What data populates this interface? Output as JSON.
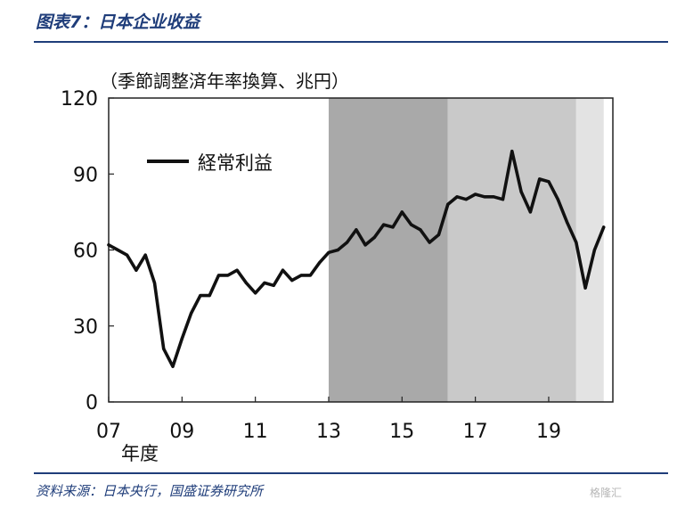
{
  "figure_title": "图表7：日本企业收益",
  "source": "资料来源：日本央行，国盛证券研究所",
  "watermark": "格隆汇",
  "colors": {
    "title": "#1f3d7a",
    "line": "#111111",
    "band_dark": "#a9a9a9",
    "band_mid": "#c9c9c9",
    "band_light": "#e3e3e3"
  },
  "chart_data": {
    "type": "line",
    "unit_note": "（季節調整済年率換算、兆円）",
    "xlabel": "年度",
    "ylim": [
      0,
      120
    ],
    "yticks": [
      0,
      30,
      60,
      90,
      120
    ],
    "xlim": [
      2007,
      2020.75
    ],
    "xticks": [
      {
        "value": 2007,
        "label": "07"
      },
      {
        "value": 2009,
        "label": "09"
      },
      {
        "value": 2011,
        "label": "11"
      },
      {
        "value": 2013,
        "label": "13"
      },
      {
        "value": 2015,
        "label": "15"
      },
      {
        "value": 2017,
        "label": "17"
      },
      {
        "value": 2019,
        "label": "19"
      }
    ],
    "grid": false,
    "legend_position": "top-left",
    "shaded_periods": [
      {
        "from": 2013.0,
        "to": 2016.25,
        "shade": "dark"
      },
      {
        "from": 2016.25,
        "to": 2019.75,
        "shade": "mid"
      },
      {
        "from": 2019.75,
        "to": 2020.5,
        "shade": "light"
      }
    ],
    "series": [
      {
        "name": "経常利益",
        "x": [
          2007.0,
          2007.25,
          2007.5,
          2007.75,
          2008.0,
          2008.25,
          2008.5,
          2008.75,
          2009.0,
          2009.25,
          2009.5,
          2009.75,
          2010.0,
          2010.25,
          2010.5,
          2010.75,
          2011.0,
          2011.25,
          2011.5,
          2011.75,
          2012.0,
          2012.25,
          2012.5,
          2012.75,
          2013.0,
          2013.25,
          2013.5,
          2013.75,
          2014.0,
          2014.25,
          2014.5,
          2014.75,
          2015.0,
          2015.25,
          2015.5,
          2015.75,
          2016.0,
          2016.25,
          2016.5,
          2016.75,
          2017.0,
          2017.25,
          2017.5,
          2017.75,
          2018.0,
          2018.25,
          2018.5,
          2018.75,
          2019.0,
          2019.25,
          2019.5,
          2019.75,
          2020.0,
          2020.25,
          2020.5
        ],
        "values": [
          62,
          60,
          58,
          52,
          58,
          47,
          21,
          14,
          25,
          35,
          42,
          42,
          50,
          50,
          52,
          47,
          43,
          47,
          46,
          52,
          48,
          50,
          50,
          55,
          59,
          60,
          63,
          68,
          62,
          65,
          70,
          69,
          75,
          70,
          68,
          63,
          66,
          78,
          81,
          80,
          82,
          81,
          81,
          80,
          99,
          83,
          75,
          88,
          87,
          80,
          71,
          63,
          45,
          60,
          69
        ]
      }
    ]
  }
}
